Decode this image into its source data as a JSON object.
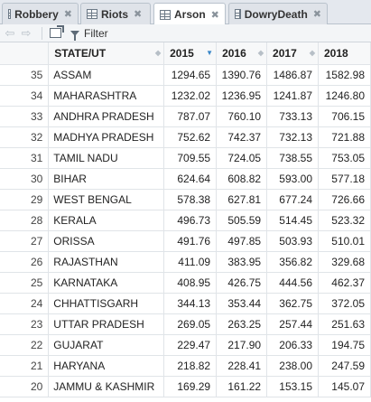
{
  "tabs": [
    {
      "label": "Robbery",
      "active": false
    },
    {
      "label": "Riots",
      "active": false
    },
    {
      "label": "Arson",
      "active": true
    },
    {
      "label": "DowryDeath",
      "active": false
    }
  ],
  "toolbar": {
    "filter_label": "Filter"
  },
  "columns": [
    "STATE/UT",
    "2015",
    "2016",
    "2017",
    "2018"
  ],
  "rows": [
    {
      "n": "35",
      "state": "ASSAM",
      "v": [
        "1294.65",
        "1390.76",
        "1486.87",
        "1582.98"
      ]
    },
    {
      "n": "34",
      "state": "MAHARASHTRA",
      "v": [
        "1232.02",
        "1236.95",
        "1241.87",
        "1246.80"
      ]
    },
    {
      "n": "33",
      "state": "ANDHRA PRADESH",
      "v": [
        "787.07",
        "760.10",
        "733.13",
        "706.15"
      ]
    },
    {
      "n": "32",
      "state": "MADHYA PRADESH",
      "v": [
        "752.62",
        "742.37",
        "732.13",
        "721.88"
      ]
    },
    {
      "n": "31",
      "state": "TAMIL NADU",
      "v": [
        "709.55",
        "724.05",
        "738.55",
        "753.05"
      ]
    },
    {
      "n": "30",
      "state": "BIHAR",
      "v": [
        "624.64",
        "608.82",
        "593.00",
        "577.18"
      ]
    },
    {
      "n": "29",
      "state": "WEST BENGAL",
      "v": [
        "578.38",
        "627.81",
        "677.24",
        "726.66"
      ]
    },
    {
      "n": "28",
      "state": "KERALA",
      "v": [
        "496.73",
        "505.59",
        "514.45",
        "523.32"
      ]
    },
    {
      "n": "27",
      "state": "ORISSA",
      "v": [
        "491.76",
        "497.85",
        "503.93",
        "510.01"
      ]
    },
    {
      "n": "26",
      "state": "RAJASTHAN",
      "v": [
        "411.09",
        "383.95",
        "356.82",
        "329.68"
      ]
    },
    {
      "n": "25",
      "state": "KARNATAKA",
      "v": [
        "408.95",
        "426.75",
        "444.56",
        "462.37"
      ]
    },
    {
      "n": "24",
      "state": "CHHATTISGARH",
      "v": [
        "344.13",
        "353.44",
        "362.75",
        "372.05"
      ]
    },
    {
      "n": "23",
      "state": "UTTAR PRADESH",
      "v": [
        "269.05",
        "263.25",
        "257.44",
        "251.63"
      ]
    },
    {
      "n": "22",
      "state": "GUJARAT",
      "v": [
        "229.47",
        "217.90",
        "206.33",
        "194.75"
      ]
    },
    {
      "n": "21",
      "state": "HARYANA",
      "v": [
        "218.82",
        "228.41",
        "238.00",
        "247.59"
      ]
    },
    {
      "n": "20",
      "state": "JAMMU & KASHMIR",
      "v": [
        "169.29",
        "161.22",
        "153.15",
        "145.07"
      ]
    }
  ]
}
